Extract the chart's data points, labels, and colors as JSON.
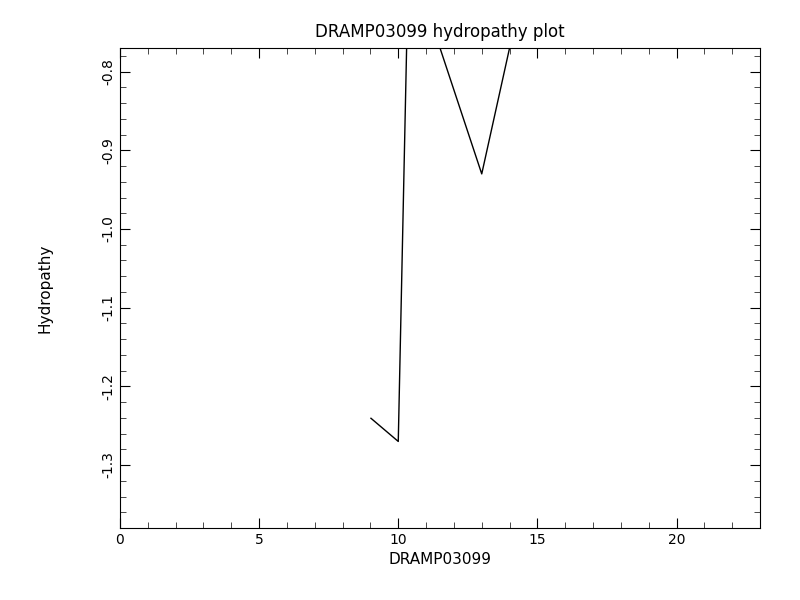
{
  "title": "DRAMP03099 hydropathy plot",
  "xlabel": "DRAMP03099",
  "ylabel": "Hydropathy",
  "xlim": [
    0,
    23
  ],
  "ylim": [
    -1.38,
    -0.77
  ],
  "xticks": [
    0,
    5,
    10,
    15,
    20
  ],
  "yticks": [
    -1.3,
    -1.2,
    -1.1,
    -1.0,
    -0.9,
    -0.8
  ],
  "line_color": "#000000",
  "line_width": 1.0,
  "background_color": "#ffffff",
  "x": [
    9.0,
    10.0,
    10.3,
    11.5,
    13.0,
    14.0
  ],
  "y": [
    -1.24,
    -1.27,
    -0.77,
    -0.77,
    -0.93,
    -0.77
  ]
}
